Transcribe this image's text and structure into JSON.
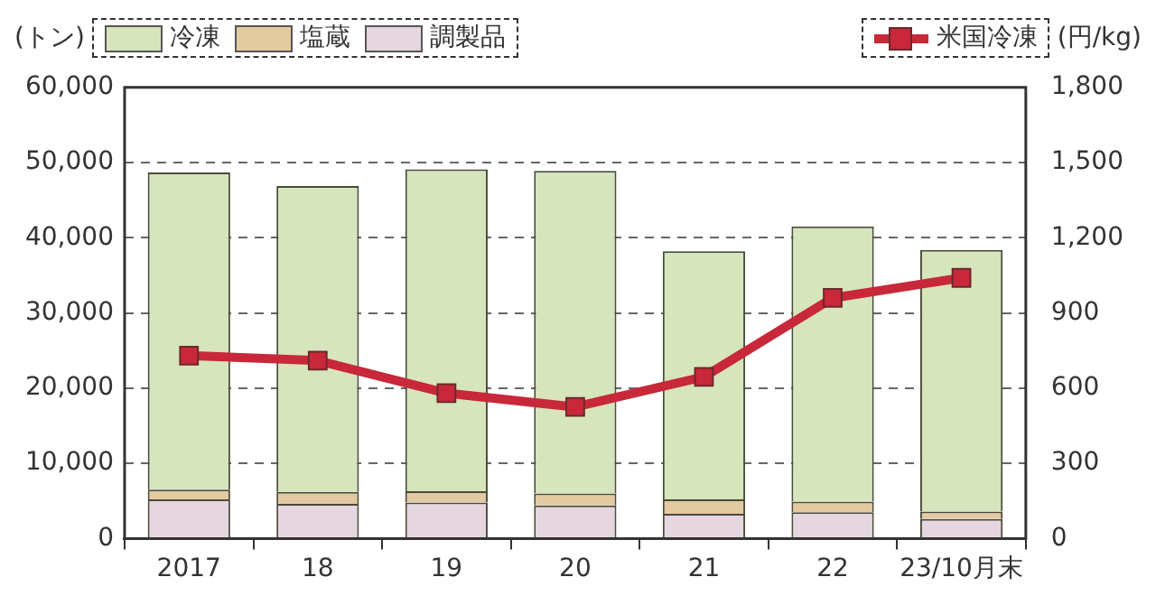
{
  "chart_data": {
    "type": "bar",
    "stacked": true,
    "ylabel": "(トン)",
    "y2label": "(円/kg)",
    "categories": [
      "2017",
      "18",
      "19",
      "20",
      "21",
      "22",
      "23/10月末"
    ],
    "series": [
      {
        "name": "調製品",
        "color": "#e5d6df",
        "values": [
          5200,
          4600,
          4800,
          4400,
          3300,
          3500,
          2600
        ]
      },
      {
        "name": "塩蔵",
        "color": "#e3caa1",
        "values": [
          1300,
          1600,
          1500,
          1600,
          1900,
          1400,
          1000
        ]
      },
      {
        "name": "冷凍",
        "color": "#d6e5bc",
        "values": [
          42200,
          40700,
          42800,
          42900,
          33000,
          36600,
          34800
        ]
      },
      {
        "name": "米国冷凍",
        "type": "line",
        "axis": "y2",
        "color": "#c8283a",
        "values": [
          730,
          710,
          580,
          525,
          645,
          960,
          1040
        ]
      }
    ],
    "ylim": [
      0,
      60000
    ],
    "yticks": [
      {
        "value": 0,
        "label": "0"
      },
      {
        "value": 10000,
        "label": "10,000"
      },
      {
        "value": 20000,
        "label": "20,000"
      },
      {
        "value": 30000,
        "label": "30,000"
      },
      {
        "value": 40000,
        "label": "40,000"
      },
      {
        "value": 50000,
        "label": "50,000"
      },
      {
        "value": 60000,
        "label": "60,000"
      }
    ],
    "y2lim": [
      0,
      1800
    ],
    "y2ticks": [
      {
        "value": 0,
        "label": "0"
      },
      {
        "value": 300,
        "label": "300"
      },
      {
        "value": 600,
        "label": "600"
      },
      {
        "value": 900,
        "label": "900"
      },
      {
        "value": 1200,
        "label": "1,200"
      },
      {
        "value": 1500,
        "label": "1,500"
      },
      {
        "value": 1800,
        "label": "1,800"
      }
    ],
    "grid": "y",
    "legend": "top",
    "marker": "square",
    "line_style": "solid"
  }
}
